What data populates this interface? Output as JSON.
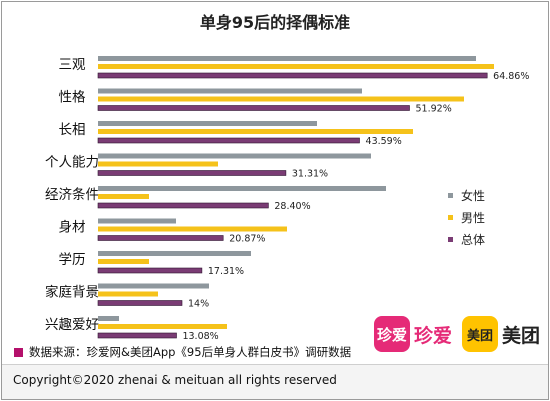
{
  "chart_data": {
    "type": "bar",
    "orientation": "horizontal",
    "title": "单身95后的择偶标准",
    "categories": [
      "三观",
      "性格",
      "长相",
      "个人能力",
      "经济条件",
      "身材",
      "学历",
      "家庭背景",
      "兴趣爱好"
    ],
    "series": [
      {
        "name": "女性",
        "color": "#8e979d",
        "values": [
          63.0,
          44.0,
          36.5,
          45.5,
          48.0,
          13.0,
          25.5,
          18.5,
          3.5
        ]
      },
      {
        "name": "男性",
        "color": "#f5c21a",
        "values": [
          66.0,
          61.0,
          52.5,
          20.0,
          8.5,
          31.5,
          8.5,
          10.0,
          21.5
        ]
      },
      {
        "name": "总体",
        "color": "#7a3c74",
        "values": [
          64.86,
          51.92,
          43.59,
          31.31,
          28.4,
          20.87,
          17.31,
          14.0,
          13.08
        ]
      }
    ],
    "data_labels": [
      "64.86%",
      "51.92%",
      "43.59%",
      "31.31%",
      "28.40%",
      "20.87%",
      "17.31%",
      "14%",
      "13.08%"
    ],
    "xlim": [
      0,
      70
    ],
    "grid": false,
    "legend_position": "right"
  },
  "source_text": "数据来源：珍爱网&美团App《95后单身人群白皮书》调研数据",
  "copyright_text": "Copyright©2020 zhenai & meituan all rights reserved",
  "logos": {
    "zhenai_icon": "珍爱",
    "zhenai_text": "珍爱",
    "meituan_icon": "美团",
    "meituan_text": "美团"
  }
}
